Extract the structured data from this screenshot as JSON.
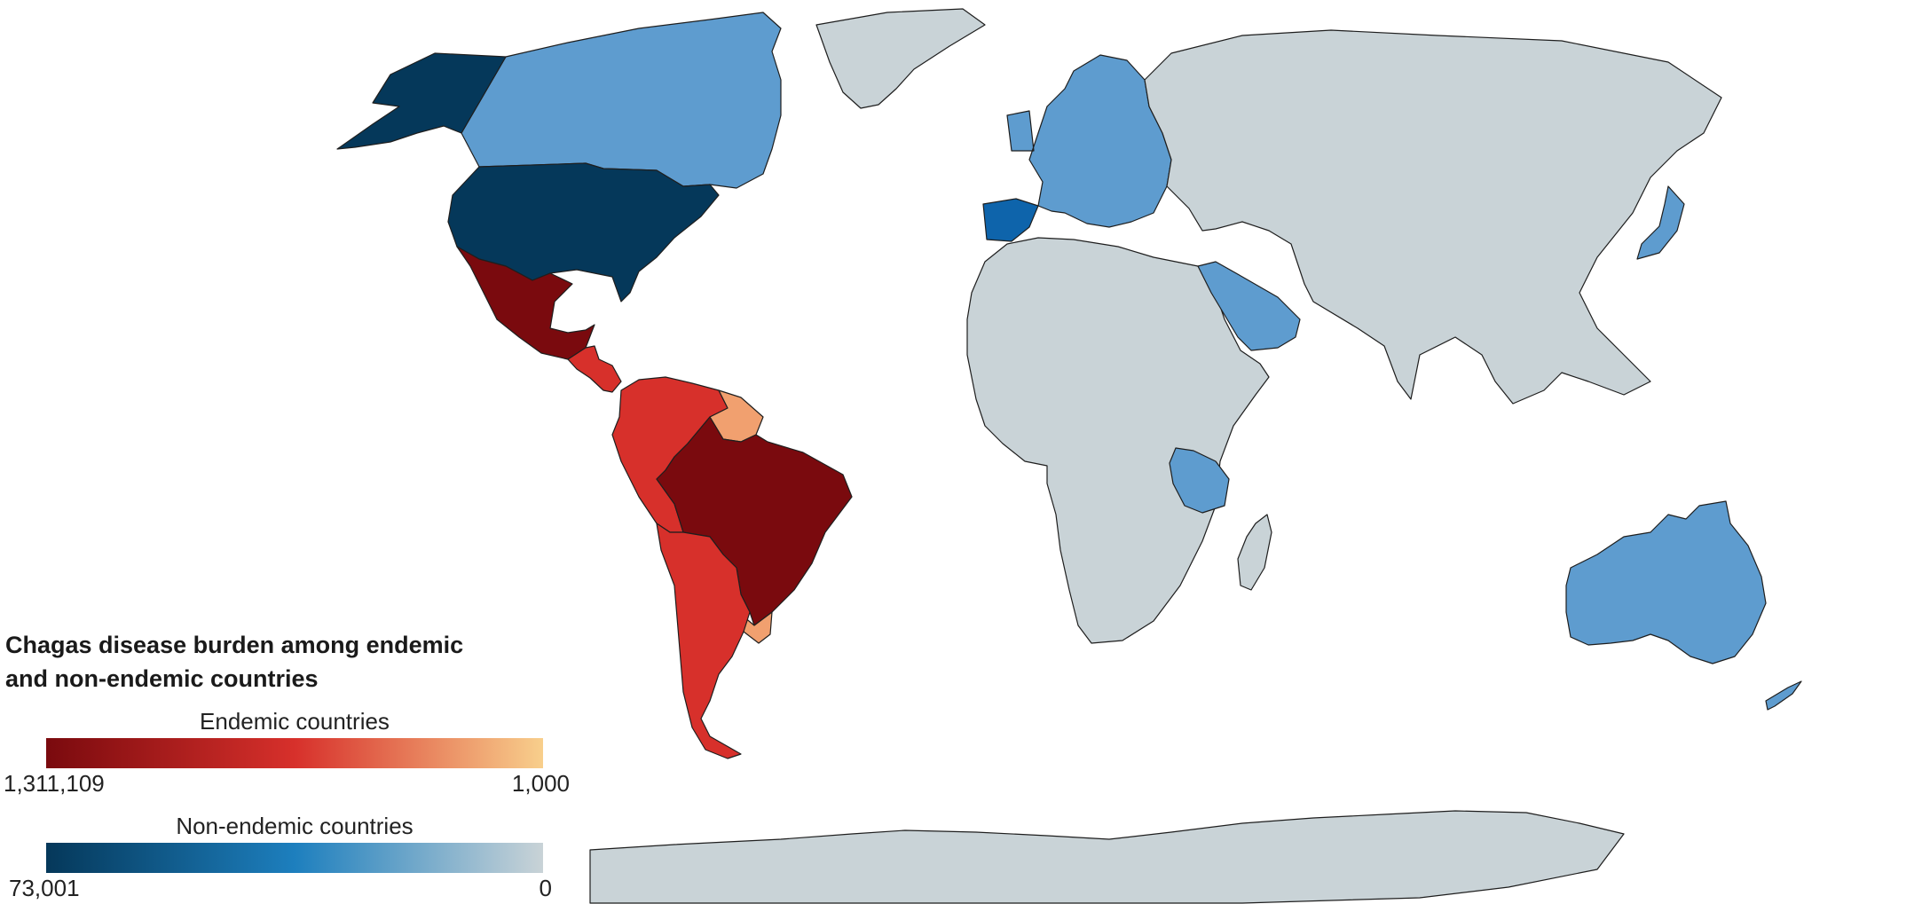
{
  "title_line1": "Chagas disease burden among endemic",
  "title_line2": "and non-endemic countries",
  "legend": {
    "endemic": {
      "label": "Endemic countries",
      "max_label": "1,311,109",
      "min_label": "1,000",
      "max": 1311109,
      "min": 1000,
      "color_max": "#7a0a0e",
      "color_mid": "#d7302b",
      "color_min": "#f8cf8c"
    },
    "nonendemic": {
      "label": "Non-endemic countries",
      "max_label": "73,001",
      "min_label": "0",
      "max": 73001,
      "min": 0,
      "color_max": "#05385a",
      "color_mid": "#1d7fbe",
      "color_min": "#c9d3d7"
    }
  },
  "no_data_color": "#c9d3d7",
  "regions": [
    {
      "name": "Alaska",
      "group": "non-endemic",
      "color": "#05385a"
    },
    {
      "name": "Canada",
      "group": "non-endemic",
      "color": "#5e9ccf"
    },
    {
      "name": "Greenland",
      "group": "none",
      "color": "#c9d3d7"
    },
    {
      "name": "United States",
      "group": "non-endemic",
      "color": "#05385a"
    },
    {
      "name": "Mexico",
      "group": "endemic",
      "color": "#7a0a0e"
    },
    {
      "name": "Central America",
      "group": "endemic",
      "color": "#d7302b"
    },
    {
      "name": "Guianas",
      "group": "endemic",
      "color": "#f1a06f"
    },
    {
      "name": "Northern South America",
      "group": "endemic",
      "color": "#d7302b"
    },
    {
      "name": "Brazil",
      "group": "endemic",
      "color": "#7a0a0e"
    },
    {
      "name": "Southern South America",
      "group": "endemic",
      "color": "#d7302b"
    },
    {
      "name": "Uruguay",
      "group": "endemic",
      "color": "#f1a06f"
    },
    {
      "name": "Spain",
      "group": "non-endemic",
      "color": "#0e64ab"
    },
    {
      "name": "Europe",
      "group": "non-endemic",
      "color": "#5e9ccf"
    },
    {
      "name": "Russia and Asia",
      "group": "none",
      "color": "#c9d3d7"
    },
    {
      "name": "Japan",
      "group": "non-endemic",
      "color": "#5e9ccf"
    },
    {
      "name": "Africa",
      "group": "none",
      "color": "#c9d3d7"
    },
    {
      "name": "Madagascar",
      "group": "none",
      "color": "#c9d3d7"
    },
    {
      "name": "Saudi Arabia",
      "group": "non-endemic",
      "color": "#5e9ccf"
    },
    {
      "name": "Tanzania",
      "group": "non-endemic",
      "color": "#5e9ccf"
    },
    {
      "name": "Australia",
      "group": "non-endemic",
      "color": "#5e9ccf"
    },
    {
      "name": "New Zealand",
      "group": "non-endemic",
      "color": "#5e9ccf"
    },
    {
      "name": "Antarctica",
      "group": "none",
      "color": "#c9d3d7"
    }
  ]
}
